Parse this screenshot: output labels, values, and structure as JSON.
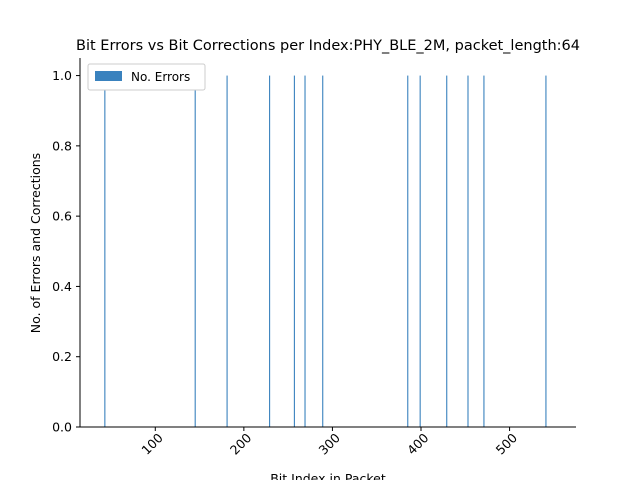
{
  "chart_data": {
    "type": "bar",
    "title": "Bit Errors vs Bit Corrections per Index:PHY_BLE_2M, packet_length:64",
    "xlabel": "Bit Index in Packet",
    "ylabel": "No. of Errors and Corrections",
    "xlim": [
      15,
      575
    ],
    "ylim": [
      0,
      1.05
    ],
    "xticks": [
      100,
      200,
      300,
      400,
      500
    ],
    "yticks": [
      0.0,
      0.2,
      0.4,
      0.6,
      0.8,
      1.0
    ],
    "ytick_labels": [
      "0.0",
      "0.2",
      "0.4",
      "0.6",
      "0.8",
      "1.0"
    ],
    "legend_position": "top-left",
    "grid": false,
    "series": [
      {
        "name": "No. Errors",
        "color": "#3a82be",
        "x": [
          43,
          145,
          181,
          229,
          257,
          269,
          289,
          385,
          399,
          429,
          453,
          471,
          541
        ],
        "values": [
          1,
          1,
          1,
          1,
          1,
          1,
          1,
          1,
          1,
          1,
          1,
          1,
          1
        ]
      }
    ]
  }
}
